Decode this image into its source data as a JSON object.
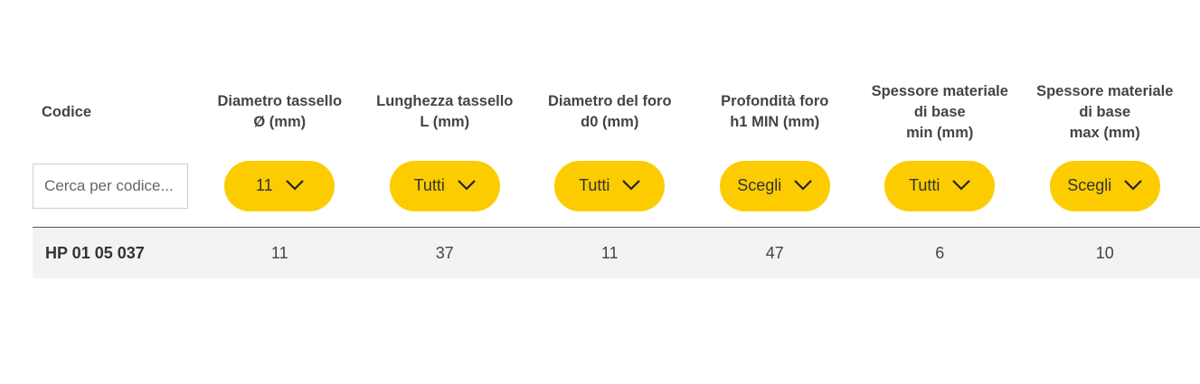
{
  "accent_color": "#fccc00",
  "headers": [
    "Codice",
    "Diametro tassello\nØ (mm)",
    "Lunghezza tassello\nL (mm)",
    "Diametro del foro\nd0 (mm)",
    "Profondità foro\nh1 MIN (mm)",
    "Spessore materiale\ndi base\nmin (mm)",
    "Spessore materiale\ndi base\nmax (mm)"
  ],
  "search": {
    "placeholder": "Cerca per codice..."
  },
  "filters": [
    {
      "value": "11",
      "icon": "chevron-down-icon"
    },
    {
      "value": "Tutti",
      "icon": "chevron-down-icon"
    },
    {
      "value": "Tutti",
      "icon": "chevron-down-icon"
    },
    {
      "value": "Scegli",
      "icon": "chevron-down-icon"
    },
    {
      "value": "Tutti",
      "icon": "chevron-down-icon"
    },
    {
      "value": "Scegli",
      "icon": "chevron-down-icon"
    }
  ],
  "rows": [
    {
      "code": "HP 01 05 037",
      "values": [
        "11",
        "37",
        "11",
        "47",
        "6",
        "10"
      ]
    }
  ]
}
